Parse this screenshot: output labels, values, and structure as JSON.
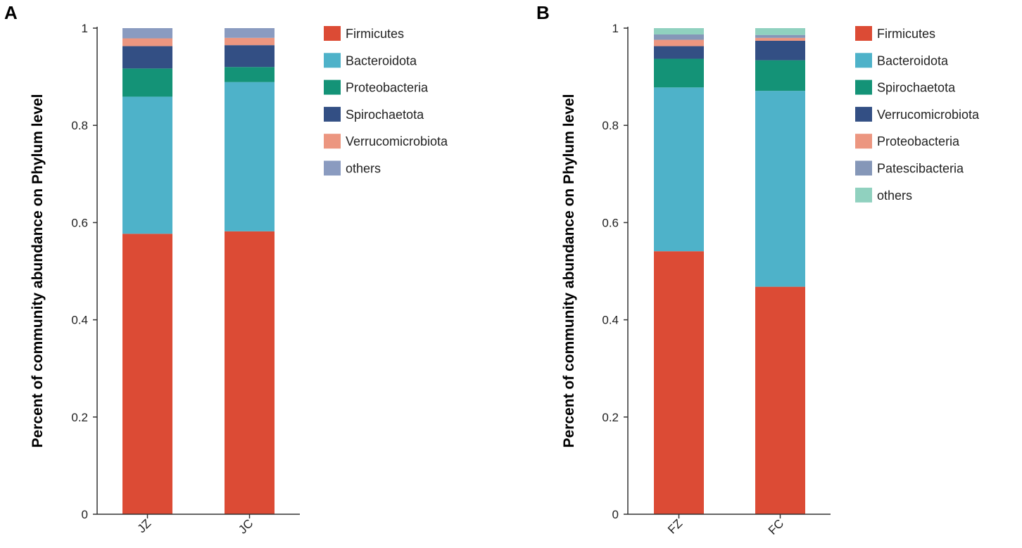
{
  "colors": {
    "Firmicutes": "#dc4b35",
    "Bacteroidota": "#4eb2c9",
    "Proteobacteria": "#149377",
    "Spirochaetota": "#334f84",
    "Verrucomicrobiota": "#ec9680",
    "Patescibacteria": "#8597b8",
    "others": "#8a9bc0",
    "othersB": "#90d1bf"
  },
  "chart_data": [
    {
      "type": "bar",
      "stacked": true,
      "panel": "A",
      "title": "",
      "xlabel": "",
      "ylabel": "Percent of community abundance on Phylum level",
      "ylim": [
        0,
        1
      ],
      "yticks": [
        "0",
        "0.2",
        "0.4",
        "0.6",
        "0.8",
        "1"
      ],
      "categories": [
        "JZ",
        "JC"
      ],
      "legend_position": "right",
      "series": [
        {
          "name": "Firmicutes",
          "color": "#dc4b35",
          "values": [
            0.577,
            0.582
          ]
        },
        {
          "name": "Bacteroidota",
          "color": "#4eb2c9",
          "values": [
            0.282,
            0.307
          ]
        },
        {
          "name": "Proteobacteria",
          "color": "#149377",
          "values": [
            0.058,
            0.031
          ]
        },
        {
          "name": "Spirochaetota",
          "color": "#334f84",
          "values": [
            0.046,
            0.045
          ]
        },
        {
          "name": "Verrucomicrobiota",
          "color": "#ec9680",
          "values": [
            0.016,
            0.015
          ]
        },
        {
          "name": "others",
          "color": "#8a9bc0",
          "values": [
            0.021,
            0.02
          ]
        }
      ]
    },
    {
      "type": "bar",
      "stacked": true,
      "panel": "B",
      "title": "",
      "xlabel": "",
      "ylabel": "Percent of community abundance on Phylum level",
      "ylim": [
        0,
        1
      ],
      "yticks": [
        "0",
        "0.2",
        "0.4",
        "0.6",
        "0.8",
        "1"
      ],
      "categories": [
        "FZ",
        "FC"
      ],
      "legend_position": "right",
      "series": [
        {
          "name": "Firmicutes",
          "color": "#dc4b35",
          "values": [
            0.541,
            0.468
          ]
        },
        {
          "name": "Bacteroidota",
          "color": "#4eb2c9",
          "values": [
            0.337,
            0.403
          ]
        },
        {
          "name": "Spirochaetota",
          "color": "#149377",
          "values": [
            0.059,
            0.063
          ]
        },
        {
          "name": "Verrucomicrobiota",
          "color": "#334f84",
          "values": [
            0.026,
            0.04
          ]
        },
        {
          "name": "Proteobacteria",
          "color": "#ec9680",
          "values": [
            0.013,
            0.006
          ]
        },
        {
          "name": "Patescibacteria",
          "color": "#8597b8",
          "values": [
            0.011,
            0.006
          ]
        },
        {
          "name": "others",
          "color": "#90d1bf",
          "values": [
            0.013,
            0.014
          ]
        }
      ]
    }
  ]
}
